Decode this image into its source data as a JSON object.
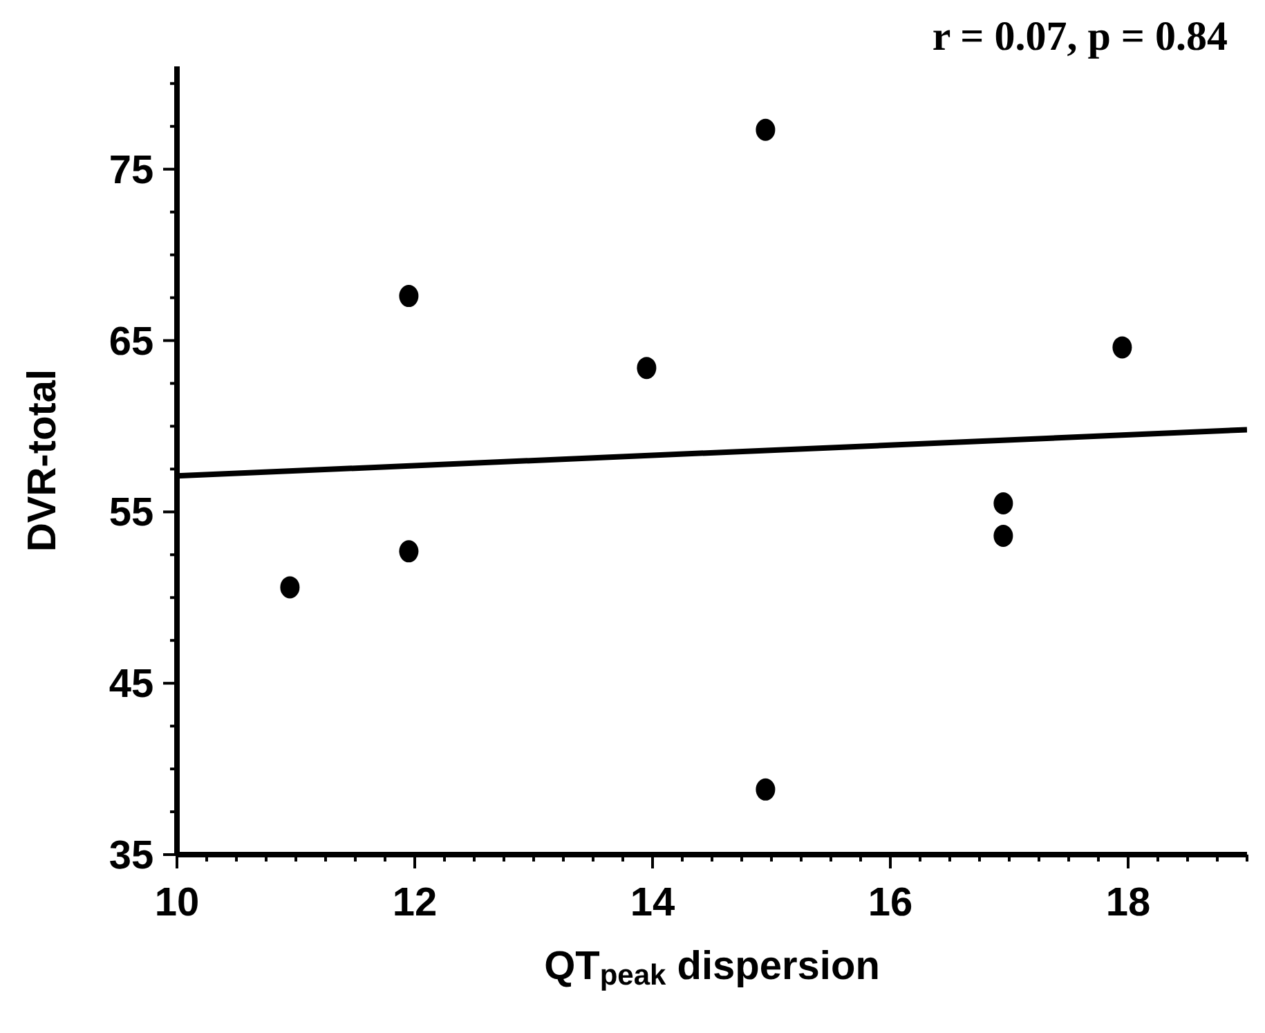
{
  "chart_data": {
    "type": "scatter",
    "xlabel": "QT$_{peak}$ dispersion",
    "ylabel": "DVR-total",
    "annotations": [
      "r = 0.07, p = 0.84"
    ],
    "x": [
      10.95,
      11.95,
      11.95,
      13.95,
      14.95,
      14.95,
      16.95,
      16.95,
      17.95
    ],
    "series": [
      {
        "color": "#000000",
        "marker": "circle",
        "values": [
          50.6,
          67.6,
          52.7,
          63.4,
          77.3,
          38.8,
          55.5,
          53.6,
          64.6
        ]
      },
      {
        "type": "line",
        "color": "#000000",
        "marker": "none",
        "line_style": "solid",
        "x": [
          10,
          19
        ],
        "values": [
          57.1,
          59.8
        ]
      }
    ],
    "xlim": [
      10,
      19
    ],
    "ylim": [
      35,
      81
    ],
    "xticks": [
      10,
      {
        "value": 10.25,
        "label": null
      },
      {
        "value": 10.5,
        "label": null
      },
      {
        "value": 10.75,
        "label": null
      },
      {
        "value": 11,
        "label": null
      },
      {
        "value": 11.25,
        "label": null
      },
      {
        "value": 11.5,
        "label": null
      },
      {
        "value": 11.75,
        "label": null
      },
      12,
      {
        "value": 12.25,
        "label": null
      },
      {
        "value": 12.5,
        "label": null
      },
      {
        "value": 12.75,
        "label": null
      },
      {
        "value": 13,
        "label": null
      },
      {
        "value": 13.25,
        "label": null
      },
      {
        "value": 13.5,
        "label": null
      },
      {
        "value": 13.75,
        "label": null
      },
      14,
      {
        "value": 14.25,
        "label": null
      },
      {
        "value": 14.5,
        "label": null
      },
      {
        "value": 14.75,
        "label": null
      },
      {
        "value": 15,
        "label": null
      },
      {
        "value": 15.25,
        "label": null
      },
      {
        "value": 15.5,
        "label": null
      },
      {
        "value": 15.75,
        "label": null
      },
      16,
      {
        "value": 16.25,
        "label": null
      },
      {
        "value": 16.5,
        "label": null
      },
      {
        "value": 16.75,
        "label": null
      },
      {
        "value": 17,
        "label": null
      },
      {
        "value": 17.25,
        "label": null
      },
      {
        "value": 17.5,
        "label": null
      },
      {
        "value": 17.75,
        "label": null
      },
      18,
      {
        "value": 18.25,
        "label": null
      },
      {
        "value": 18.5,
        "label": null
      },
      {
        "value": 18.75,
        "label": null
      },
      {
        "value": 19,
        "label": null
      }
    ],
    "yticks": [
      35,
      {
        "value": 37.5,
        "label": null
      },
      {
        "value": 40,
        "label": null
      },
      {
        "value": 42.5,
        "label": null
      },
      45,
      {
        "value": 47.5,
        "label": null
      },
      {
        "value": 50,
        "label": null
      },
      {
        "value": 52.5,
        "label": null
      },
      55,
      {
        "value": 57.5,
        "label": null
      },
      {
        "value": 60,
        "label": null
      },
      {
        "value": 62.5,
        "label": null
      },
      65,
      {
        "value": 67.5,
        "label": null
      },
      {
        "value": 70,
        "label": null
      },
      {
        "value": 72.5,
        "label": null
      },
      75,
      {
        "value": 77.5,
        "label": null
      },
      {
        "value": 80,
        "label": null
      }
    ],
    "grid": false,
    "legend": false
  }
}
